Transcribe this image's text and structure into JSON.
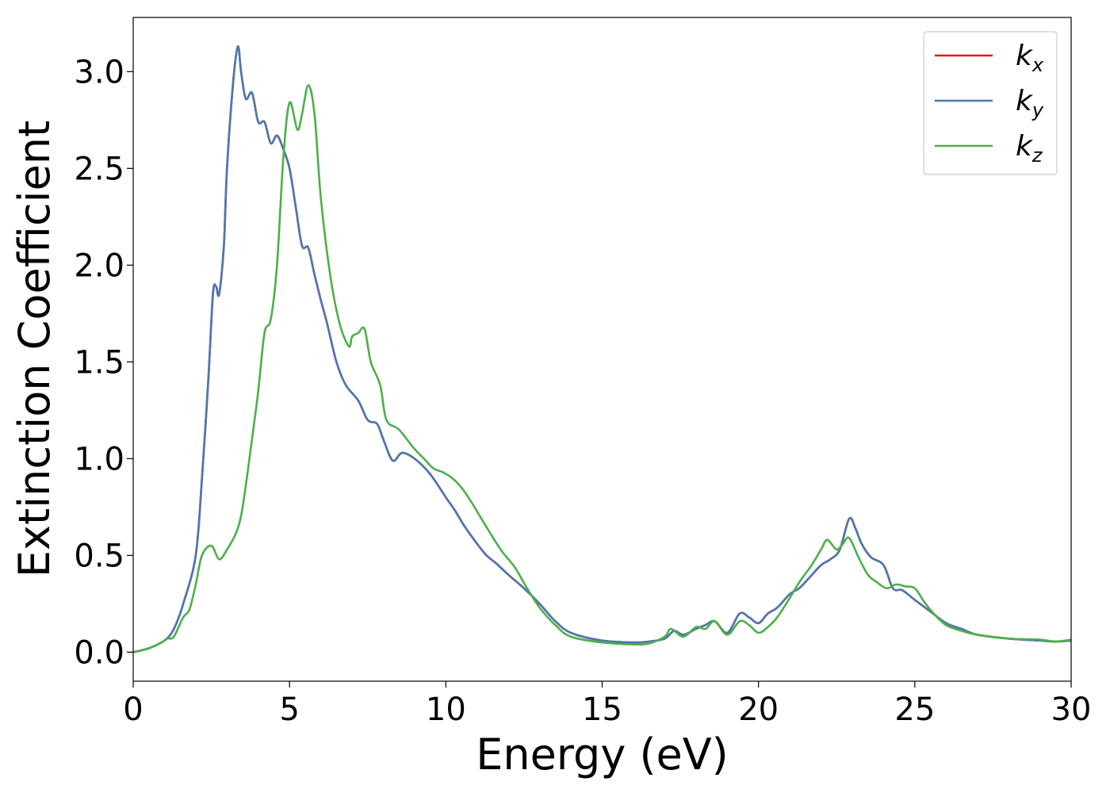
{
  "chart_data": {
    "type": "line",
    "title": "",
    "xlabel": "Energy (eV)",
    "ylabel": "Extinction Coefficient",
    "xlim": [
      0,
      30
    ],
    "ylim": [
      -0.15,
      3.28
    ],
    "xticks": [
      0,
      5,
      10,
      15,
      20,
      25,
      30
    ],
    "xtick_labels": [
      "0",
      "5",
      "10",
      "15",
      "20",
      "25",
      "30"
    ],
    "yticks": [
      0.0,
      0.5,
      1.0,
      1.5,
      2.0,
      2.5,
      3.0
    ],
    "ytick_labels": [
      "0.0",
      "0.5",
      "1.0",
      "1.5",
      "2.0",
      "2.5",
      "3.0"
    ],
    "grid": false,
    "legend_position": "top-right",
    "series": [
      {
        "name": "k_x",
        "legend_main": "k",
        "legend_sub": "x",
        "color": "#e41a1c",
        "x": [
          0,
          0.5,
          1.0,
          1.3,
          1.6,
          2.0,
          2.2,
          2.4,
          2.55,
          2.65,
          2.75,
          2.9,
          3.0,
          3.2,
          3.35,
          3.45,
          3.6,
          3.8,
          4.0,
          4.2,
          4.4,
          4.6,
          4.8,
          5.0,
          5.2,
          5.4,
          5.6,
          5.8,
          6.0,
          6.2,
          6.5,
          6.8,
          7.2,
          7.5,
          7.8,
          8.0,
          8.3,
          8.6,
          9.0,
          9.5,
          10.0,
          10.3,
          10.6,
          11.0,
          11.3,
          11.6,
          12.0,
          12.5,
          13.0,
          13.5,
          14.0,
          15.0,
          16.0,
          16.5,
          17.0,
          17.3,
          17.6,
          18.0,
          18.3,
          18.6,
          19.0,
          19.4,
          19.7,
          20.0,
          20.3,
          20.6,
          21.0,
          21.3,
          21.6,
          22.0,
          22.3,
          22.6,
          22.9,
          23.1,
          23.3,
          23.6,
          24.0,
          24.3,
          24.6,
          25.0,
          25.5,
          26.0,
          26.5,
          27.0,
          28.0,
          29.0,
          29.5,
          30.0
        ],
        "values": [
          0.0,
          0.02,
          0.06,
          0.12,
          0.25,
          0.5,
          0.9,
          1.4,
          1.85,
          1.89,
          1.85,
          2.1,
          2.5,
          2.95,
          3.13,
          3.0,
          2.86,
          2.89,
          2.74,
          2.74,
          2.63,
          2.67,
          2.6,
          2.5,
          2.3,
          2.1,
          2.09,
          1.95,
          1.82,
          1.7,
          1.5,
          1.38,
          1.3,
          1.2,
          1.18,
          1.1,
          0.99,
          1.03,
          1.0,
          0.92,
          0.8,
          0.73,
          0.65,
          0.56,
          0.5,
          0.46,
          0.4,
          0.33,
          0.25,
          0.16,
          0.1,
          0.06,
          0.05,
          0.055,
          0.07,
          0.11,
          0.09,
          0.12,
          0.14,
          0.16,
          0.1,
          0.2,
          0.18,
          0.15,
          0.2,
          0.23,
          0.3,
          0.33,
          0.38,
          0.45,
          0.48,
          0.53,
          0.69,
          0.64,
          0.56,
          0.49,
          0.45,
          0.33,
          0.32,
          0.27,
          0.21,
          0.15,
          0.12,
          0.09,
          0.07,
          0.06,
          0.055,
          0.06
        ]
      },
      {
        "name": "k_y",
        "legend_main": "k",
        "legend_sub": "y",
        "color": "#4a78b0",
        "x": [
          0,
          0.5,
          1.0,
          1.3,
          1.6,
          2.0,
          2.2,
          2.4,
          2.55,
          2.65,
          2.75,
          2.9,
          3.0,
          3.2,
          3.35,
          3.45,
          3.6,
          3.8,
          4.0,
          4.2,
          4.4,
          4.6,
          4.8,
          5.0,
          5.2,
          5.4,
          5.6,
          5.8,
          6.0,
          6.2,
          6.5,
          6.8,
          7.2,
          7.5,
          7.8,
          8.0,
          8.3,
          8.6,
          9.0,
          9.5,
          10.0,
          10.3,
          10.6,
          11.0,
          11.3,
          11.6,
          12.0,
          12.5,
          13.0,
          13.5,
          14.0,
          15.0,
          16.0,
          16.5,
          17.0,
          17.3,
          17.6,
          18.0,
          18.3,
          18.6,
          19.0,
          19.4,
          19.7,
          20.0,
          20.3,
          20.6,
          21.0,
          21.3,
          21.6,
          22.0,
          22.3,
          22.6,
          22.9,
          23.1,
          23.3,
          23.6,
          24.0,
          24.3,
          24.6,
          25.0,
          25.5,
          26.0,
          26.5,
          27.0,
          28.0,
          29.0,
          29.5,
          30.0
        ],
        "values": [
          0.0,
          0.02,
          0.06,
          0.12,
          0.25,
          0.5,
          0.9,
          1.4,
          1.85,
          1.89,
          1.85,
          2.1,
          2.5,
          2.95,
          3.13,
          3.0,
          2.86,
          2.89,
          2.74,
          2.74,
          2.63,
          2.67,
          2.6,
          2.5,
          2.3,
          2.1,
          2.09,
          1.95,
          1.82,
          1.7,
          1.5,
          1.38,
          1.3,
          1.2,
          1.18,
          1.1,
          0.99,
          1.03,
          1.0,
          0.92,
          0.8,
          0.73,
          0.65,
          0.56,
          0.5,
          0.46,
          0.4,
          0.33,
          0.25,
          0.16,
          0.1,
          0.06,
          0.05,
          0.055,
          0.07,
          0.11,
          0.09,
          0.12,
          0.14,
          0.16,
          0.1,
          0.2,
          0.18,
          0.15,
          0.2,
          0.23,
          0.3,
          0.33,
          0.38,
          0.45,
          0.48,
          0.53,
          0.69,
          0.64,
          0.56,
          0.49,
          0.45,
          0.33,
          0.32,
          0.27,
          0.21,
          0.15,
          0.12,
          0.09,
          0.07,
          0.06,
          0.055,
          0.06
        ]
      },
      {
        "name": "k_z",
        "legend_main": "k",
        "legend_sub": "z",
        "color": "#4daf4a",
        "x": [
          0,
          0.5,
          0.9,
          1.1,
          1.3,
          1.6,
          1.8,
          2.0,
          2.2,
          2.5,
          2.75,
          3.0,
          3.3,
          3.5,
          3.8,
          4.0,
          4.2,
          4.4,
          4.6,
          4.8,
          5.0,
          5.25,
          5.4,
          5.6,
          5.8,
          6.0,
          6.3,
          6.6,
          6.9,
          7.0,
          7.2,
          7.4,
          7.6,
          7.9,
          8.1,
          8.5,
          9.0,
          9.3,
          9.6,
          9.9,
          10.2,
          10.5,
          10.8,
          11.1,
          11.4,
          11.8,
          12.2,
          12.6,
          13.0,
          13.5,
          14.0,
          15.0,
          16.0,
          16.5,
          17.0,
          17.2,
          17.6,
          18.0,
          18.3,
          18.6,
          19.0,
          19.4,
          19.7,
          20.0,
          20.3,
          20.6,
          21.0,
          21.3,
          21.7,
          22.0,
          22.2,
          22.5,
          22.7,
          22.9,
          23.2,
          23.5,
          23.8,
          24.1,
          24.4,
          24.7,
          25.0,
          25.3,
          25.6,
          26.0,
          26.5,
          27.0,
          28.0,
          29.0,
          29.5,
          30.0
        ],
        "values": [
          0.0,
          0.02,
          0.05,
          0.07,
          0.08,
          0.18,
          0.22,
          0.35,
          0.5,
          0.55,
          0.48,
          0.53,
          0.62,
          0.75,
          1.1,
          1.35,
          1.65,
          1.72,
          2.0,
          2.55,
          2.84,
          2.7,
          2.78,
          2.93,
          2.78,
          2.35,
          1.95,
          1.7,
          1.58,
          1.63,
          1.65,
          1.67,
          1.5,
          1.38,
          1.2,
          1.15,
          1.05,
          1.0,
          0.95,
          0.93,
          0.9,
          0.85,
          0.78,
          0.7,
          0.62,
          0.52,
          0.44,
          0.33,
          0.23,
          0.14,
          0.08,
          0.05,
          0.04,
          0.045,
          0.08,
          0.12,
          0.08,
          0.13,
          0.12,
          0.16,
          0.09,
          0.16,
          0.14,
          0.1,
          0.13,
          0.18,
          0.28,
          0.36,
          0.45,
          0.53,
          0.58,
          0.53,
          0.56,
          0.59,
          0.49,
          0.4,
          0.36,
          0.33,
          0.35,
          0.34,
          0.33,
          0.26,
          0.2,
          0.14,
          0.11,
          0.09,
          0.07,
          0.065,
          0.055,
          0.065
        ]
      }
    ]
  }
}
